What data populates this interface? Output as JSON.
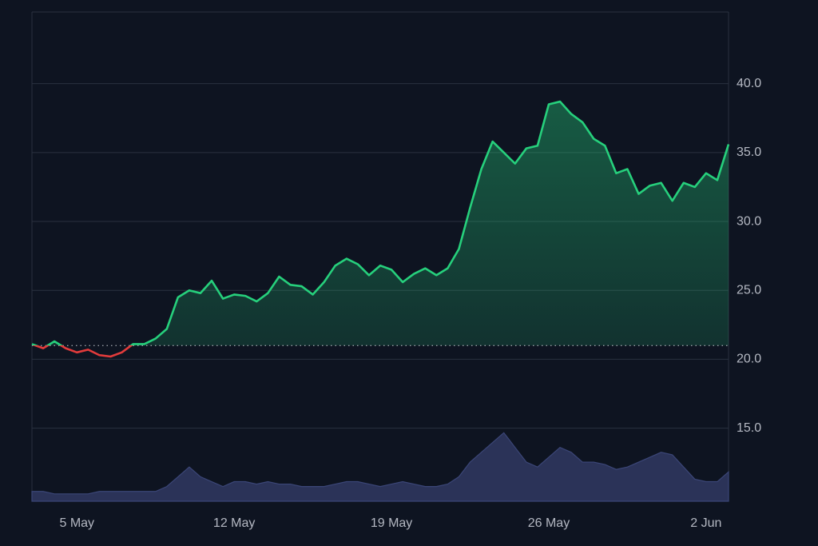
{
  "chart_data": {
    "type": "line",
    "categories": [
      null,
      null,
      null,
      null,
      "5 May",
      null,
      null,
      null,
      null,
      null,
      null,
      null,
      null,
      null,
      null,
      null,
      null,
      null,
      "12 May",
      null,
      null,
      null,
      null,
      null,
      null,
      null,
      null,
      null,
      null,
      null,
      null,
      null,
      "19 May",
      null,
      null,
      null,
      null,
      null,
      null,
      null,
      null,
      null,
      null,
      null,
      null,
      null,
      "26 May",
      null,
      null,
      null,
      null,
      null,
      null,
      null,
      null,
      null,
      null,
      null,
      null,
      null,
      "2 Jun",
      null,
      null
    ],
    "series": [
      {
        "color": "#26d07c",
        "below_color": "#e23b3b",
        "values": [
          21.1,
          20.8,
          21.3,
          20.8,
          20.5,
          20.7,
          20.3,
          20.2,
          20.5,
          21.1,
          21.1,
          21.5,
          22.2,
          24.5,
          25.0,
          24.8,
          25.7,
          24.4,
          24.7,
          24.6,
          24.2,
          24.8,
          26.0,
          25.4,
          25.3,
          24.7,
          25.6,
          26.8,
          27.3,
          26.9,
          26.1,
          26.8,
          26.5,
          25.6,
          26.2,
          26.6,
          26.1,
          26.6,
          28.0,
          31.0,
          33.8,
          35.8,
          35.0,
          34.2,
          35.3,
          35.5,
          38.5,
          38.7,
          37.8,
          37.2,
          36.0,
          35.5,
          33.5,
          33.8,
          32.0,
          32.6,
          32.8,
          31.5,
          32.8,
          32.5,
          33.5,
          33.0,
          35.6
        ]
      },
      {
        "axis": "y2",
        "color": "#2b3358",
        "values": [
          2,
          2,
          1.5,
          1.5,
          1.5,
          1.5,
          2,
          2,
          2,
          2,
          2,
          2,
          3,
          5,
          7,
          5,
          4,
          3,
          4,
          4,
          3.5,
          4,
          3.5,
          3.5,
          3,
          3,
          3,
          3.5,
          4,
          4,
          3.5,
          3,
          3.5,
          4,
          3.5,
          3,
          3,
          3.5,
          5,
          8,
          10,
          12,
          14,
          11,
          8,
          7,
          9,
          11,
          10,
          8,
          8,
          7.5,
          6.5,
          7,
          8,
          9,
          10,
          9.5,
          7,
          4.5,
          4,
          4,
          6
        ]
      }
    ],
    "baseline": 21,
    "ylim": [
      9.7,
      45.2
    ],
    "yticks": [
      {
        "value": 15,
        "label": "15.0"
      },
      {
        "value": 20,
        "label": "20.0"
      },
      {
        "value": 25,
        "label": "25.0"
      },
      {
        "value": 30,
        "label": "30.0"
      },
      {
        "value": 35,
        "label": "35.0"
      },
      {
        "value": 40,
        "label": "40.0"
      }
    ],
    "y2lim": [
      0,
      100
    ],
    "grid": true
  }
}
